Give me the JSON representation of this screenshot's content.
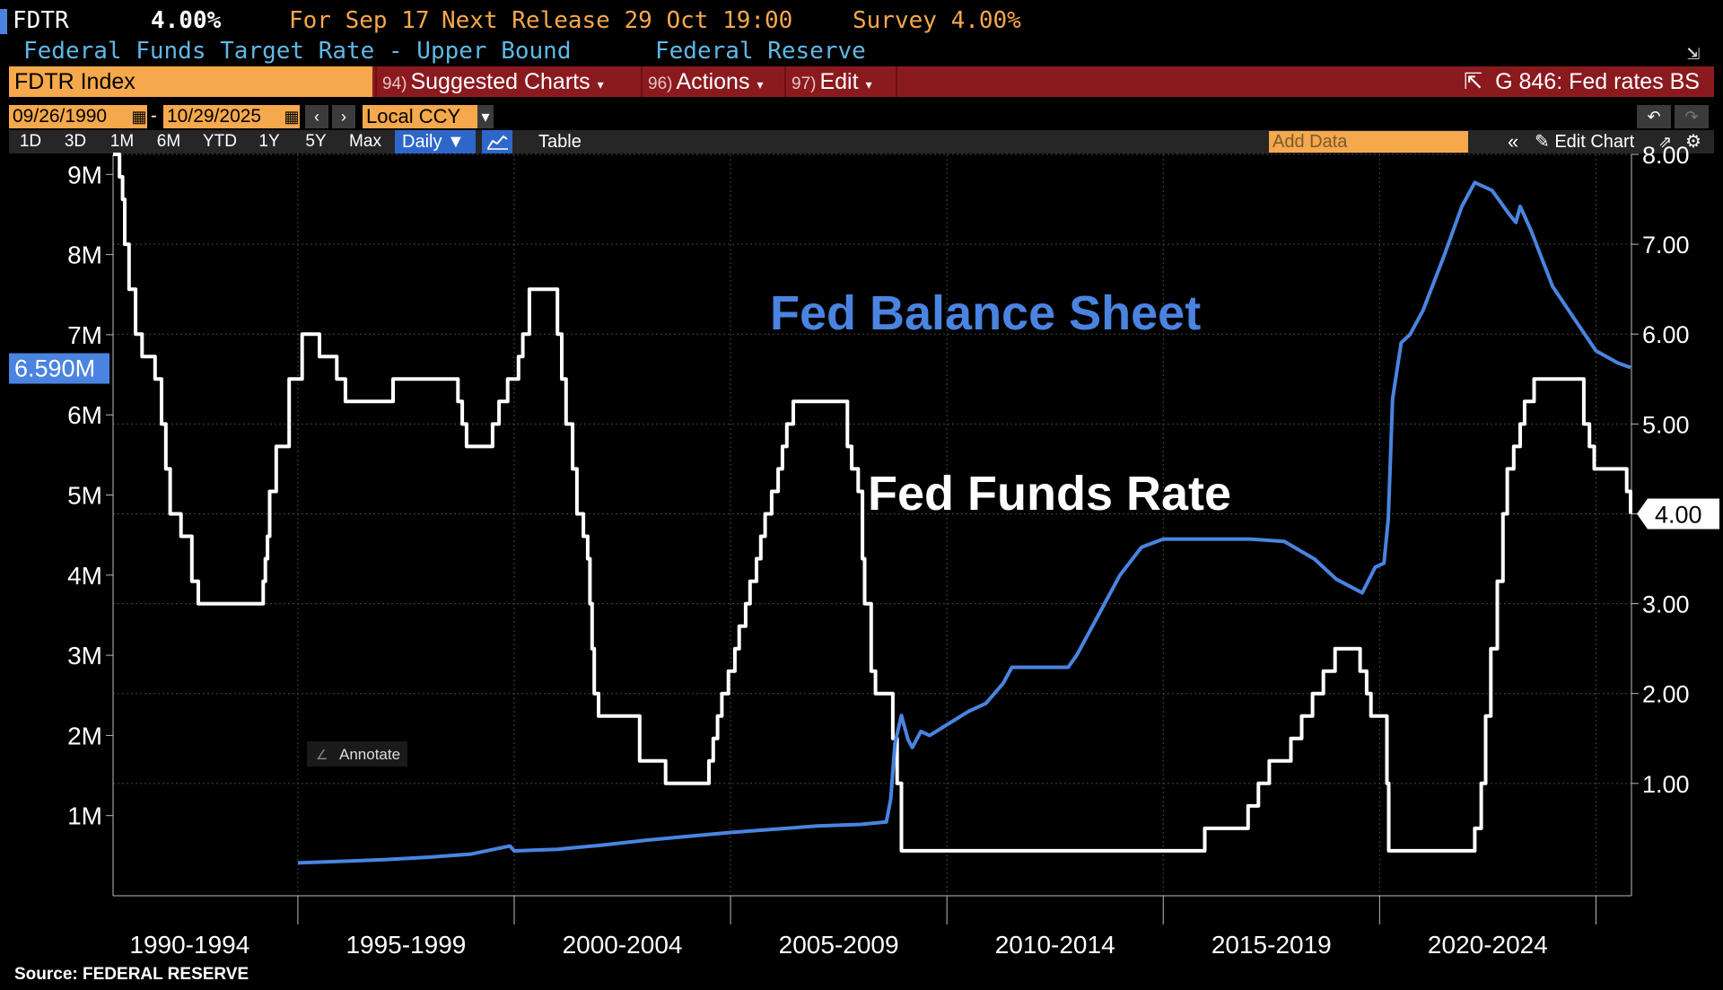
{
  "header": {
    "ticker": "FDTR",
    "value": "4.00%",
    "for_label": "For Sep 17",
    "next_release": "Next Release 29 Oct 19:00",
    "survey": "Survey 4.00%",
    "description": "Federal Funds Target Rate - Upper Bound",
    "source_name": "Federal Reserve"
  },
  "toolbar": {
    "security": "FDTR Index",
    "menus": [
      {
        "num": "94)",
        "label": "Suggested Charts"
      },
      {
        "num": "96)",
        "label": "Actions"
      },
      {
        "num": "97)",
        "label": "Edit"
      }
    ],
    "favorite": "G 846: Fed rates BS"
  },
  "range": {
    "start": "09/26/1990",
    "end": "10/29/2025",
    "currency": "Local CCY"
  },
  "periods": [
    "1D",
    "3D",
    "1M",
    "6M",
    "YTD",
    "1Y",
    "5Y",
    "Max"
  ],
  "frequency": "Daily",
  "table_label": "Table",
  "add_data_placeholder": "Add Data",
  "edit_chart_label": "Edit Chart",
  "annotate_label": "Annotate",
  "source_text": "Source: FEDERAL RESERVE",
  "colors": {
    "balance_sheet": "#4a84e0",
    "fed_funds": "#ffffff",
    "toolbar_bg": "#8b1a1f",
    "orange": "#f5a84c"
  },
  "chart_data": {
    "type": "line",
    "x_categories": [
      "1990-1994",
      "1995-1999",
      "2000-2004",
      "2005-2009",
      "2010-2014",
      "2015-2019",
      "2020-2024"
    ],
    "left_axis": {
      "ticks": [
        "1M",
        "2M",
        "3M",
        "4M",
        "5M",
        "6M",
        "7M",
        "8M",
        "9M"
      ],
      "range": [
        0,
        9.25
      ]
    },
    "right_axis": {
      "ticks": [
        "1.00",
        "2.00",
        "3.00",
        "4.00",
        "5.00",
        "6.00",
        "7.00",
        "8.00"
      ],
      "range": [
        -0.25,
        8.0
      ]
    },
    "last_left_label": "6.590M",
    "last_right_label": "4.00",
    "annotations": [
      "Fed Balance Sheet",
      "Fed Funds Rate"
    ],
    "series": [
      {
        "name": "Fed Funds Rate",
        "axis": "right",
        "points": [
          [
            1990.73,
            8.0
          ],
          [
            1990.88,
            7.75
          ],
          [
            1990.95,
            7.5
          ],
          [
            1991.0,
            7.0
          ],
          [
            1991.1,
            6.5
          ],
          [
            1991.25,
            6.0
          ],
          [
            1991.4,
            5.75
          ],
          [
            1991.7,
            5.5
          ],
          [
            1991.85,
            5.0
          ],
          [
            1991.95,
            4.5
          ],
          [
            1992.05,
            4.0
          ],
          [
            1992.3,
            3.75
          ],
          [
            1992.55,
            3.25
          ],
          [
            1992.7,
            3.0
          ],
          [
            1994.09,
            3.0
          ],
          [
            1994.2,
            3.25
          ],
          [
            1994.25,
            3.5
          ],
          [
            1994.3,
            3.75
          ],
          [
            1994.35,
            4.25
          ],
          [
            1994.5,
            4.75
          ],
          [
            1994.8,
            5.5
          ],
          [
            1995.1,
            6.0
          ],
          [
            1995.5,
            5.75
          ],
          [
            1995.9,
            5.5
          ],
          [
            1996.1,
            5.25
          ],
          [
            1997.2,
            5.5
          ],
          [
            1998.7,
            5.25
          ],
          [
            1998.8,
            5.0
          ],
          [
            1998.9,
            4.75
          ],
          [
            1999.5,
            5.0
          ],
          [
            1999.65,
            5.25
          ],
          [
            1999.85,
            5.5
          ],
          [
            2000.1,
            5.75
          ],
          [
            2000.2,
            6.0
          ],
          [
            2000.35,
            6.5
          ],
          [
            2001.0,
            6.0
          ],
          [
            2001.1,
            5.5
          ],
          [
            2001.2,
            5.0
          ],
          [
            2001.35,
            4.5
          ],
          [
            2001.45,
            4.0
          ],
          [
            2001.6,
            3.75
          ],
          [
            2001.7,
            3.5
          ],
          [
            2001.75,
            3.0
          ],
          [
            2001.8,
            2.5
          ],
          [
            2001.85,
            2.0
          ],
          [
            2001.95,
            1.75
          ],
          [
            2002.9,
            1.25
          ],
          [
            2003.5,
            1.0
          ],
          [
            2004.5,
            1.25
          ],
          [
            2004.6,
            1.5
          ],
          [
            2004.7,
            1.75
          ],
          [
            2004.8,
            2.0
          ],
          [
            2004.95,
            2.25
          ],
          [
            2005.1,
            2.5
          ],
          [
            2005.2,
            2.75
          ],
          [
            2005.35,
            3.0
          ],
          [
            2005.45,
            3.25
          ],
          [
            2005.6,
            3.5
          ],
          [
            2005.7,
            3.75
          ],
          [
            2005.8,
            4.0
          ],
          [
            2005.95,
            4.25
          ],
          [
            2006.1,
            4.5
          ],
          [
            2006.2,
            4.75
          ],
          [
            2006.3,
            5.0
          ],
          [
            2006.45,
            5.25
          ],
          [
            2007.7,
            4.75
          ],
          [
            2007.8,
            4.5
          ],
          [
            2007.95,
            4.25
          ],
          [
            2008.05,
            3.5
          ],
          [
            2008.1,
            3.0
          ],
          [
            2008.25,
            2.25
          ],
          [
            2008.35,
            2.0
          ],
          [
            2008.75,
            1.5
          ],
          [
            2008.85,
            1.0
          ],
          [
            2008.95,
            0.25
          ],
          [
            2015.96,
            0.5
          ],
          [
            2016.96,
            0.75
          ],
          [
            2017.2,
            1.0
          ],
          [
            2017.45,
            1.25
          ],
          [
            2017.95,
            1.5
          ],
          [
            2018.2,
            1.75
          ],
          [
            2018.45,
            2.0
          ],
          [
            2018.7,
            2.25
          ],
          [
            2018.97,
            2.5
          ],
          [
            2019.55,
            2.25
          ],
          [
            2019.7,
            2.0
          ],
          [
            2019.8,
            1.75
          ],
          [
            2020.17,
            1.0
          ],
          [
            2020.21,
            0.25
          ],
          [
            2022.2,
            0.5
          ],
          [
            2022.35,
            1.0
          ],
          [
            2022.45,
            1.75
          ],
          [
            2022.57,
            2.5
          ],
          [
            2022.72,
            3.25
          ],
          [
            2022.85,
            4.0
          ],
          [
            2022.95,
            4.5
          ],
          [
            2023.1,
            4.75
          ],
          [
            2023.25,
            5.0
          ],
          [
            2023.35,
            5.25
          ],
          [
            2023.57,
            5.5
          ],
          [
            2024.72,
            5.0
          ],
          [
            2024.85,
            4.75
          ],
          [
            2024.96,
            4.5
          ],
          [
            2025.71,
            4.25
          ],
          [
            2025.8,
            4.0
          ]
        ]
      },
      {
        "name": "Fed Balance Sheet",
        "axis": "left",
        "points": [
          [
            1995.0,
            0.41
          ],
          [
            1996.0,
            0.43
          ],
          [
            1997.0,
            0.45
          ],
          [
            1998.0,
            0.48
          ],
          [
            1999.0,
            0.52
          ],
          [
            1999.9,
            0.62
          ],
          [
            2000.0,
            0.56
          ],
          [
            2001.0,
            0.58
          ],
          [
            2002.0,
            0.63
          ],
          [
            2003.0,
            0.69
          ],
          [
            2004.0,
            0.74
          ],
          [
            2005.0,
            0.79
          ],
          [
            2006.0,
            0.83
          ],
          [
            2007.0,
            0.87
          ],
          [
            2008.0,
            0.89
          ],
          [
            2008.6,
            0.92
          ],
          [
            2008.7,
            1.2
          ],
          [
            2008.8,
            1.9
          ],
          [
            2008.95,
            2.25
          ],
          [
            2009.1,
            1.95
          ],
          [
            2009.2,
            1.85
          ],
          [
            2009.4,
            2.05
          ],
          [
            2009.6,
            2.0
          ],
          [
            2009.9,
            2.1
          ],
          [
            2010.5,
            2.3
          ],
          [
            2010.9,
            2.4
          ],
          [
            2011.3,
            2.65
          ],
          [
            2011.5,
            2.85
          ],
          [
            2011.8,
            2.85
          ],
          [
            2012.5,
            2.85
          ],
          [
            2012.8,
            2.85
          ],
          [
            2013.0,
            3.0
          ],
          [
            2013.5,
            3.5
          ],
          [
            2014.0,
            4.0
          ],
          [
            2014.5,
            4.35
          ],
          [
            2015.0,
            4.45
          ],
          [
            2016.0,
            4.45
          ],
          [
            2017.0,
            4.45
          ],
          [
            2017.8,
            4.42
          ],
          [
            2018.5,
            4.2
          ],
          [
            2019.0,
            3.95
          ],
          [
            2019.6,
            3.78
          ],
          [
            2019.9,
            4.1
          ],
          [
            2020.1,
            4.15
          ],
          [
            2020.2,
            4.7
          ],
          [
            2020.3,
            6.2
          ],
          [
            2020.5,
            6.9
          ],
          [
            2020.7,
            7.0
          ],
          [
            2021.0,
            7.3
          ],
          [
            2021.5,
            8.0
          ],
          [
            2021.9,
            8.6
          ],
          [
            2022.2,
            8.9
          ],
          [
            2022.6,
            8.8
          ],
          [
            2023.0,
            8.5
          ],
          [
            2023.15,
            8.4
          ],
          [
            2023.25,
            8.6
          ],
          [
            2023.5,
            8.3
          ],
          [
            2024.0,
            7.6
          ],
          [
            2024.5,
            7.2
          ],
          [
            2025.0,
            6.8
          ],
          [
            2025.5,
            6.65
          ],
          [
            2025.8,
            6.59
          ]
        ]
      }
    ]
  }
}
